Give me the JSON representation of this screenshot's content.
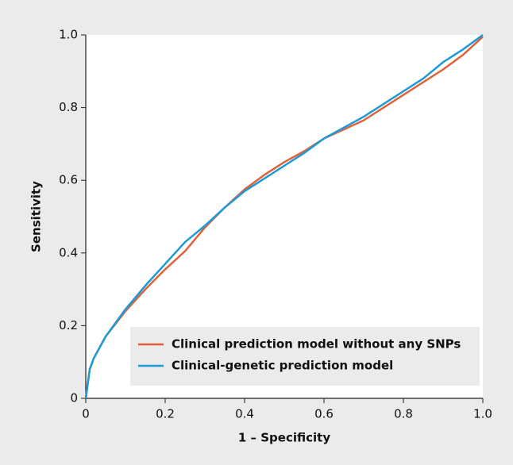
{
  "chart_data": {
    "type": "line",
    "xlabel": "1 – Specificity",
    "ylabel": "Sensitivity",
    "x": [
      0,
      0.01,
      0.02,
      0.05,
      0.1,
      0.15,
      0.2,
      0.25,
      0.3,
      0.35,
      0.4,
      0.45,
      0.5,
      0.55,
      0.6,
      0.65,
      0.7,
      0.75,
      0.8,
      0.85,
      0.9,
      0.95,
      1
    ],
    "series": [
      {
        "name": "Clinical prediction model without any SNPs",
        "color": "#e0623a",
        "values": [
          0,
          0.08,
          0.11,
          0.17,
          0.24,
          0.3,
          0.355,
          0.405,
          0.47,
          0.525,
          0.575,
          0.615,
          0.65,
          0.68,
          0.715,
          0.74,
          0.765,
          0.8,
          0.835,
          0.87,
          0.905,
          0.945,
          0.995
        ]
      },
      {
        "name": "Clinical-genetic prediction model",
        "color": "#1a9bd7",
        "values": [
          0,
          0.08,
          0.11,
          0.17,
          0.245,
          0.31,
          0.37,
          0.43,
          0.475,
          0.525,
          0.57,
          0.605,
          0.64,
          0.675,
          0.715,
          0.745,
          0.775,
          0.81,
          0.845,
          0.88,
          0.925,
          0.96,
          1
        ]
      }
    ],
    "xlim": [
      0,
      1
    ],
    "ylim": [
      0,
      1
    ],
    "xticks": [
      0,
      0.2,
      0.4,
      0.6,
      0.8,
      {
        "value": 1,
        "label": "1.0"
      }
    ],
    "yticks": [
      0,
      0.2,
      0.4,
      0.6,
      0.8,
      {
        "value": 1,
        "label": "1.0"
      }
    ],
    "grid": false,
    "legend": "lower right"
  }
}
